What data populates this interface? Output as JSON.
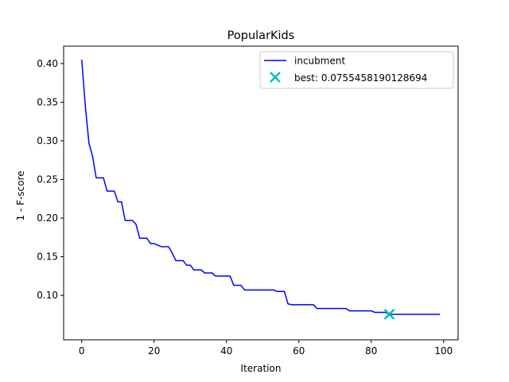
{
  "chart_data": {
    "type": "line",
    "title": "PopularKids",
    "xlabel": "Iteration",
    "ylabel": "1 - F-score",
    "xlim": [
      -5,
      104
    ],
    "ylim": [
      0.0425,
      0.4225
    ],
    "x_ticks": [
      0,
      20,
      40,
      60,
      80,
      100
    ],
    "y_ticks": [
      0.1,
      0.15,
      0.2,
      0.25,
      0.3,
      0.35,
      0.4
    ],
    "x_tick_labels": [
      "0",
      "20",
      "40",
      "60",
      "80",
      "100"
    ],
    "y_tick_labels": [
      "0.10",
      "0.15",
      "0.20",
      "0.25",
      "0.30",
      "0.35",
      "0.40"
    ],
    "grid": false,
    "legend_position": "top-right",
    "series": [
      {
        "name": "incubment",
        "color": "#0000ff",
        "x": [
          0,
          1,
          2,
          3,
          4,
          5,
          6,
          7,
          8,
          9,
          10,
          11,
          12,
          13,
          14,
          15,
          16,
          17,
          18,
          19,
          20,
          21,
          22,
          23,
          24,
          25,
          26,
          27,
          28,
          29,
          30,
          31,
          32,
          33,
          34,
          35,
          36,
          37,
          38,
          39,
          40,
          41,
          42,
          43,
          44,
          45,
          46,
          47,
          48,
          49,
          50,
          51,
          52,
          53,
          54,
          55,
          56,
          57,
          58,
          59,
          60,
          61,
          62,
          63,
          64,
          65,
          66,
          67,
          68,
          69,
          70,
          71,
          72,
          73,
          74,
          75,
          76,
          77,
          78,
          79,
          80,
          81,
          82,
          83,
          84,
          85,
          86,
          87,
          88,
          89,
          90,
          91,
          92,
          93,
          94,
          95,
          96,
          97,
          98,
          99
        ],
        "y": [
          0.405,
          0.345,
          0.297,
          0.28,
          0.252,
          0.252,
          0.252,
          0.235,
          0.235,
          0.235,
          0.221,
          0.221,
          0.197,
          0.197,
          0.197,
          0.192,
          0.174,
          0.174,
          0.174,
          0.167,
          0.167,
          0.165,
          0.163,
          0.163,
          0.163,
          0.155,
          0.145,
          0.145,
          0.145,
          0.139,
          0.139,
          0.133,
          0.133,
          0.133,
          0.129,
          0.129,
          0.129,
          0.125,
          0.125,
          0.125,
          0.125,
          0.125,
          0.113,
          0.113,
          0.113,
          0.107,
          0.107,
          0.107,
          0.107,
          0.107,
          0.107,
          0.107,
          0.107,
          0.107,
          0.105,
          0.105,
          0.105,
          0.089,
          0.088,
          0.088,
          0.088,
          0.088,
          0.088,
          0.088,
          0.088,
          0.083,
          0.083,
          0.083,
          0.083,
          0.083,
          0.083,
          0.083,
          0.083,
          0.083,
          0.08,
          0.08,
          0.08,
          0.08,
          0.08,
          0.08,
          0.08,
          0.078,
          0.078,
          0.078,
          0.078,
          0.0755,
          0.0755,
          0.0755,
          0.0755,
          0.0755,
          0.0755,
          0.0755,
          0.0755,
          0.0755,
          0.0755,
          0.0755,
          0.0755,
          0.0755,
          0.0755,
          0.0755
        ]
      },
      {
        "name": "best: 0.0755458190128694",
        "color": "#00bfbf",
        "marker": "x",
        "x": [
          85
        ],
        "y": [
          0.0755458190128694
        ]
      }
    ]
  }
}
